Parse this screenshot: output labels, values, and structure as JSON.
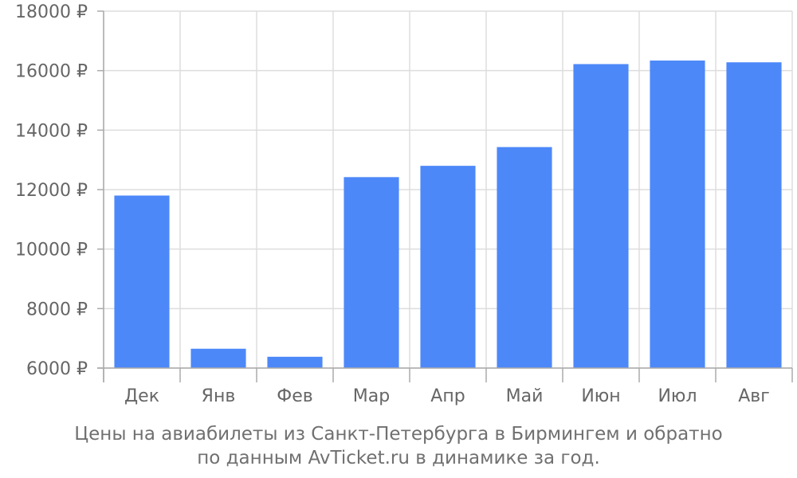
{
  "chart_data": {
    "type": "bar",
    "categories": [
      "Дек",
      "Янв",
      "Фев",
      "Мар",
      "Апр",
      "Май",
      "Июн",
      "Июл",
      "Авг"
    ],
    "values": [
      11800,
      6650,
      6380,
      12420,
      12800,
      13430,
      16220,
      16340,
      16280
    ],
    "ylim": [
      6000,
      18000
    ],
    "yticks": [
      6000,
      8000,
      10000,
      12000,
      14000,
      16000,
      18000
    ],
    "ytick_labels": [
      "6000 ₽",
      "8000 ₽",
      "10000 ₽",
      "12000 ₽",
      "14000 ₽",
      "16000 ₽",
      "18000 ₽"
    ],
    "grid": true,
    "bar_color": "#4d88f9",
    "grid_color": "#dddddd",
    "axis_color": "#aaaaaa"
  },
  "caption": {
    "line1": "Цены на авиабилеты из Санкт-Петербурга в Бирмингем и обратно",
    "line2": "по данным AvTicket.ru в динамике за год."
  }
}
